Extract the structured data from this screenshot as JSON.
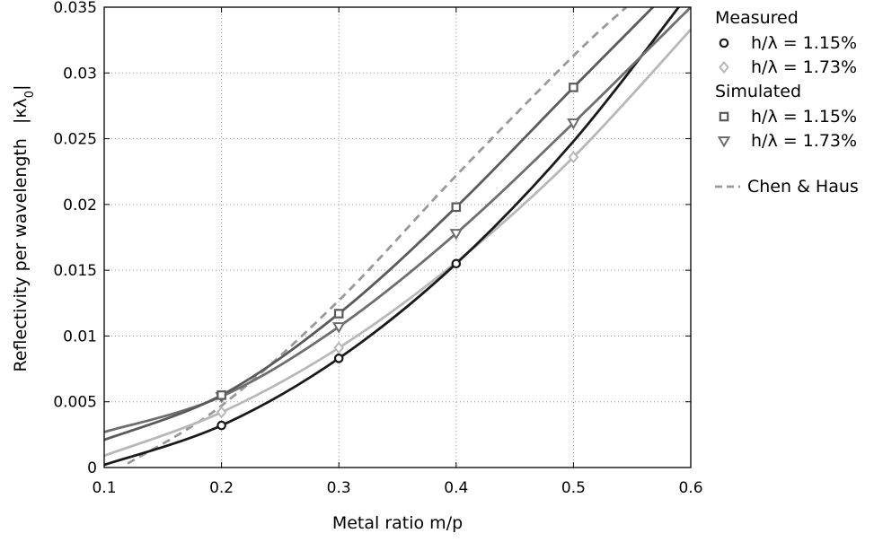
{
  "chart_data": {
    "type": "line",
    "xlabel": "Metal ratio m/p",
    "ylabel": "Reflectivity per wavelength",
    "ylabel_symbol": "|κλ",
    "ylabel_subscript": "0",
    "ylabel_close": "|",
    "xlim": [
      0.1,
      0.6
    ],
    "ylim": [
      0,
      0.035
    ],
    "grid": true,
    "legend_position": "outside-right",
    "x_ticks": [
      0.1,
      0.2,
      0.3,
      0.4,
      0.5,
      0.6
    ],
    "x_tick_labels": [
      "0.1",
      "0.2",
      "0.3",
      "0.4",
      "0.5",
      "0.6"
    ],
    "y_ticks": [
      0,
      0.005,
      0.01,
      0.015,
      0.02,
      0.025,
      0.03,
      0.035
    ],
    "y_tick_labels": [
      "0",
      "0.005",
      "0.01",
      "0.015",
      "0.02",
      "0.025",
      "0.03",
      "0.035"
    ],
    "legend_groups": [
      {
        "title": "Measured",
        "entries": [
          0,
          1
        ]
      },
      {
        "title": "Simulated",
        "entries": [
          2,
          3
        ]
      },
      {
        "title": "",
        "entries": [
          4
        ]
      }
    ],
    "series": [
      {
        "name": "h/λ = 1.15%",
        "group": "Measured",
        "marker": "circle",
        "color": "#1a1a1a",
        "points_x": [
          0.2,
          0.3,
          0.4
        ],
        "points_y": [
          0.0032,
          0.0083,
          0.0155
        ],
        "curve_x": [
          0.1,
          0.2,
          0.3,
          0.4,
          0.5,
          0.6
        ],
        "curve_y": [
          0.0002,
          0.0032,
          0.0083,
          0.0155,
          0.0248,
          0.0362
        ]
      },
      {
        "name": "h/λ = 1.73%",
        "group": "Measured",
        "marker": "diamond",
        "color": "#b8b8b8",
        "points_x": [
          0.2,
          0.3,
          0.5
        ],
        "points_y": [
          0.0042,
          0.0091,
          0.0236
        ],
        "curve_x": [
          0.1,
          0.2,
          0.3,
          0.4,
          0.5,
          0.6
        ],
        "curve_y": [
          0.0009,
          0.0042,
          0.0091,
          0.0156,
          0.0236,
          0.0333
        ]
      },
      {
        "name": "h/λ = 1.15%",
        "group": "Simulated",
        "marker": "square",
        "color": "#5a5a5a",
        "points_x": [
          0.2,
          0.3,
          0.4,
          0.5
        ],
        "points_y": [
          0.0055,
          0.0117,
          0.0198,
          0.0289
        ],
        "curve_x": [
          0.1,
          0.2,
          0.3,
          0.4,
          0.5,
          0.6
        ],
        "curve_y": [
          0.0021,
          0.0055,
          0.0117,
          0.0198,
          0.0289,
          0.0379
        ]
      },
      {
        "name": "h/λ = 1.73%",
        "group": "Simulated",
        "marker": "triangle-down",
        "color": "#6e6e6e",
        "points_x": [
          0.2,
          0.3,
          0.4,
          0.5
        ],
        "points_y": [
          0.0054,
          0.0107,
          0.0178,
          0.0262
        ],
        "curve_x": [
          0.1,
          0.2,
          0.3,
          0.4,
          0.5,
          0.6
        ],
        "curve_y": [
          0.0027,
          0.0054,
          0.0107,
          0.0178,
          0.0262,
          0.035
        ]
      },
      {
        "name": "Chen & Haus",
        "group": "",
        "marker": "none",
        "dashed": true,
        "color": "#999999",
        "points_x": [],
        "points_y": [],
        "curve_x": [
          0.12,
          0.2,
          0.3,
          0.4,
          0.5,
          0.545
        ],
        "curve_y": [
          0.0003,
          0.0047,
          0.0127,
          0.0222,
          0.0313,
          0.035
        ]
      }
    ]
  }
}
